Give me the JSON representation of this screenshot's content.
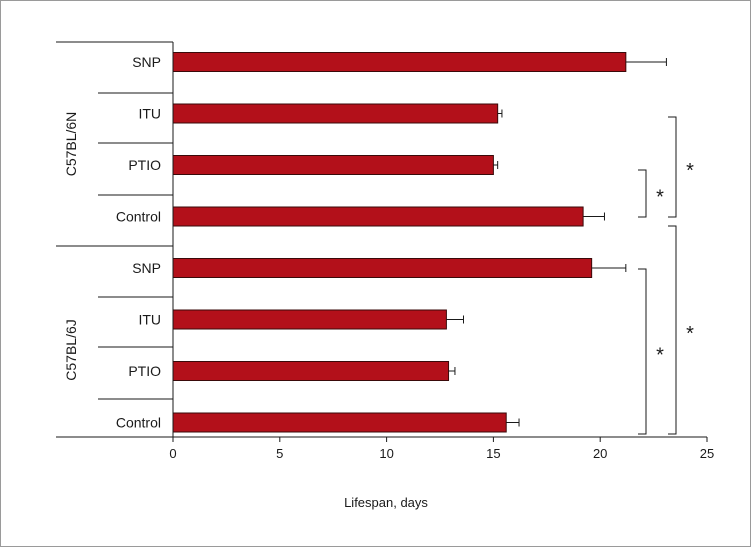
{
  "colors": {
    "bar_fill": "#b3101a",
    "bar_stroke": "#3a0a0a",
    "axis": "#1a1a1a"
  },
  "chart_data": {
    "type": "bar",
    "orientation": "horizontal",
    "xlabel": "Lifespan, days",
    "xlim": [
      0,
      25
    ],
    "xticks": [
      0,
      5,
      10,
      15,
      20,
      25
    ],
    "grid": false,
    "legend": "none",
    "groups": [
      {
        "name": "C57BL/6N",
        "categories": [
          "SNP",
          "ITU",
          "PTIO",
          "Control"
        ],
        "values": [
          21.2,
          15.2,
          15.0,
          19.2
        ],
        "errors": [
          1.9,
          0.2,
          0.2,
          1.0
        ]
      },
      {
        "name": "C57BL/6J",
        "categories": [
          "SNP",
          "ITU",
          "PTIO",
          "Control"
        ],
        "values": [
          19.6,
          12.8,
          12.9,
          15.6
        ],
        "errors": [
          1.6,
          0.8,
          0.3,
          0.6
        ]
      }
    ],
    "significance": [
      {
        "label": "*",
        "from": [
          "C57BL/6N",
          "PTIO"
        ],
        "to": [
          "C57BL/6N",
          "Control"
        ]
      },
      {
        "label": "*",
        "from": [
          "C57BL/6N",
          "ITU"
        ],
        "to": [
          "C57BL/6N",
          "Control"
        ]
      },
      {
        "label": "*",
        "from": [
          "C57BL/6J",
          "SNP"
        ],
        "to": [
          "C57BL/6J",
          "Control"
        ]
      },
      {
        "label": "*",
        "from": [
          "C57BL/6N",
          "Control"
        ],
        "to": [
          "C57BL/6J",
          "Control"
        ]
      }
    ]
  }
}
